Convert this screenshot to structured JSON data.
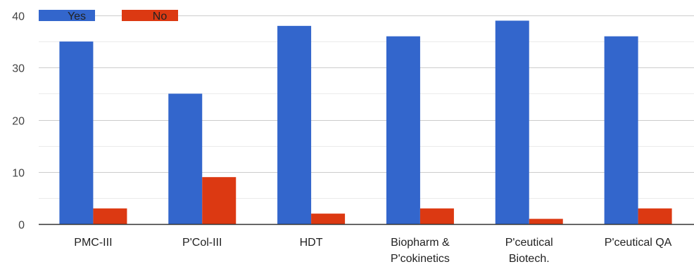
{
  "chart_data": {
    "type": "bar",
    "categories": [
      [
        "PMC-III"
      ],
      [
        "P'Col-III"
      ],
      [
        "HDT"
      ],
      [
        "Biopharm &",
        "P'cokinetics"
      ],
      [
        "P'ceutical",
        "Biotech."
      ],
      [
        "P'ceutical QA"
      ]
    ],
    "series": [
      {
        "name": "Yes",
        "color": "#3366cc",
        "values": [
          35,
          25,
          38,
          36,
          39,
          36
        ]
      },
      {
        "name": "No",
        "color": "#dc3912",
        "values": [
          3,
          9,
          2,
          3,
          1,
          3
        ]
      }
    ],
    "ylim": [
      0,
      40
    ],
    "yticks": [
      0,
      10,
      20,
      30,
      40
    ],
    "grid": true,
    "minor_grid": true,
    "legend": "top-left",
    "title": "",
    "xlabel": "",
    "ylabel": ""
  }
}
